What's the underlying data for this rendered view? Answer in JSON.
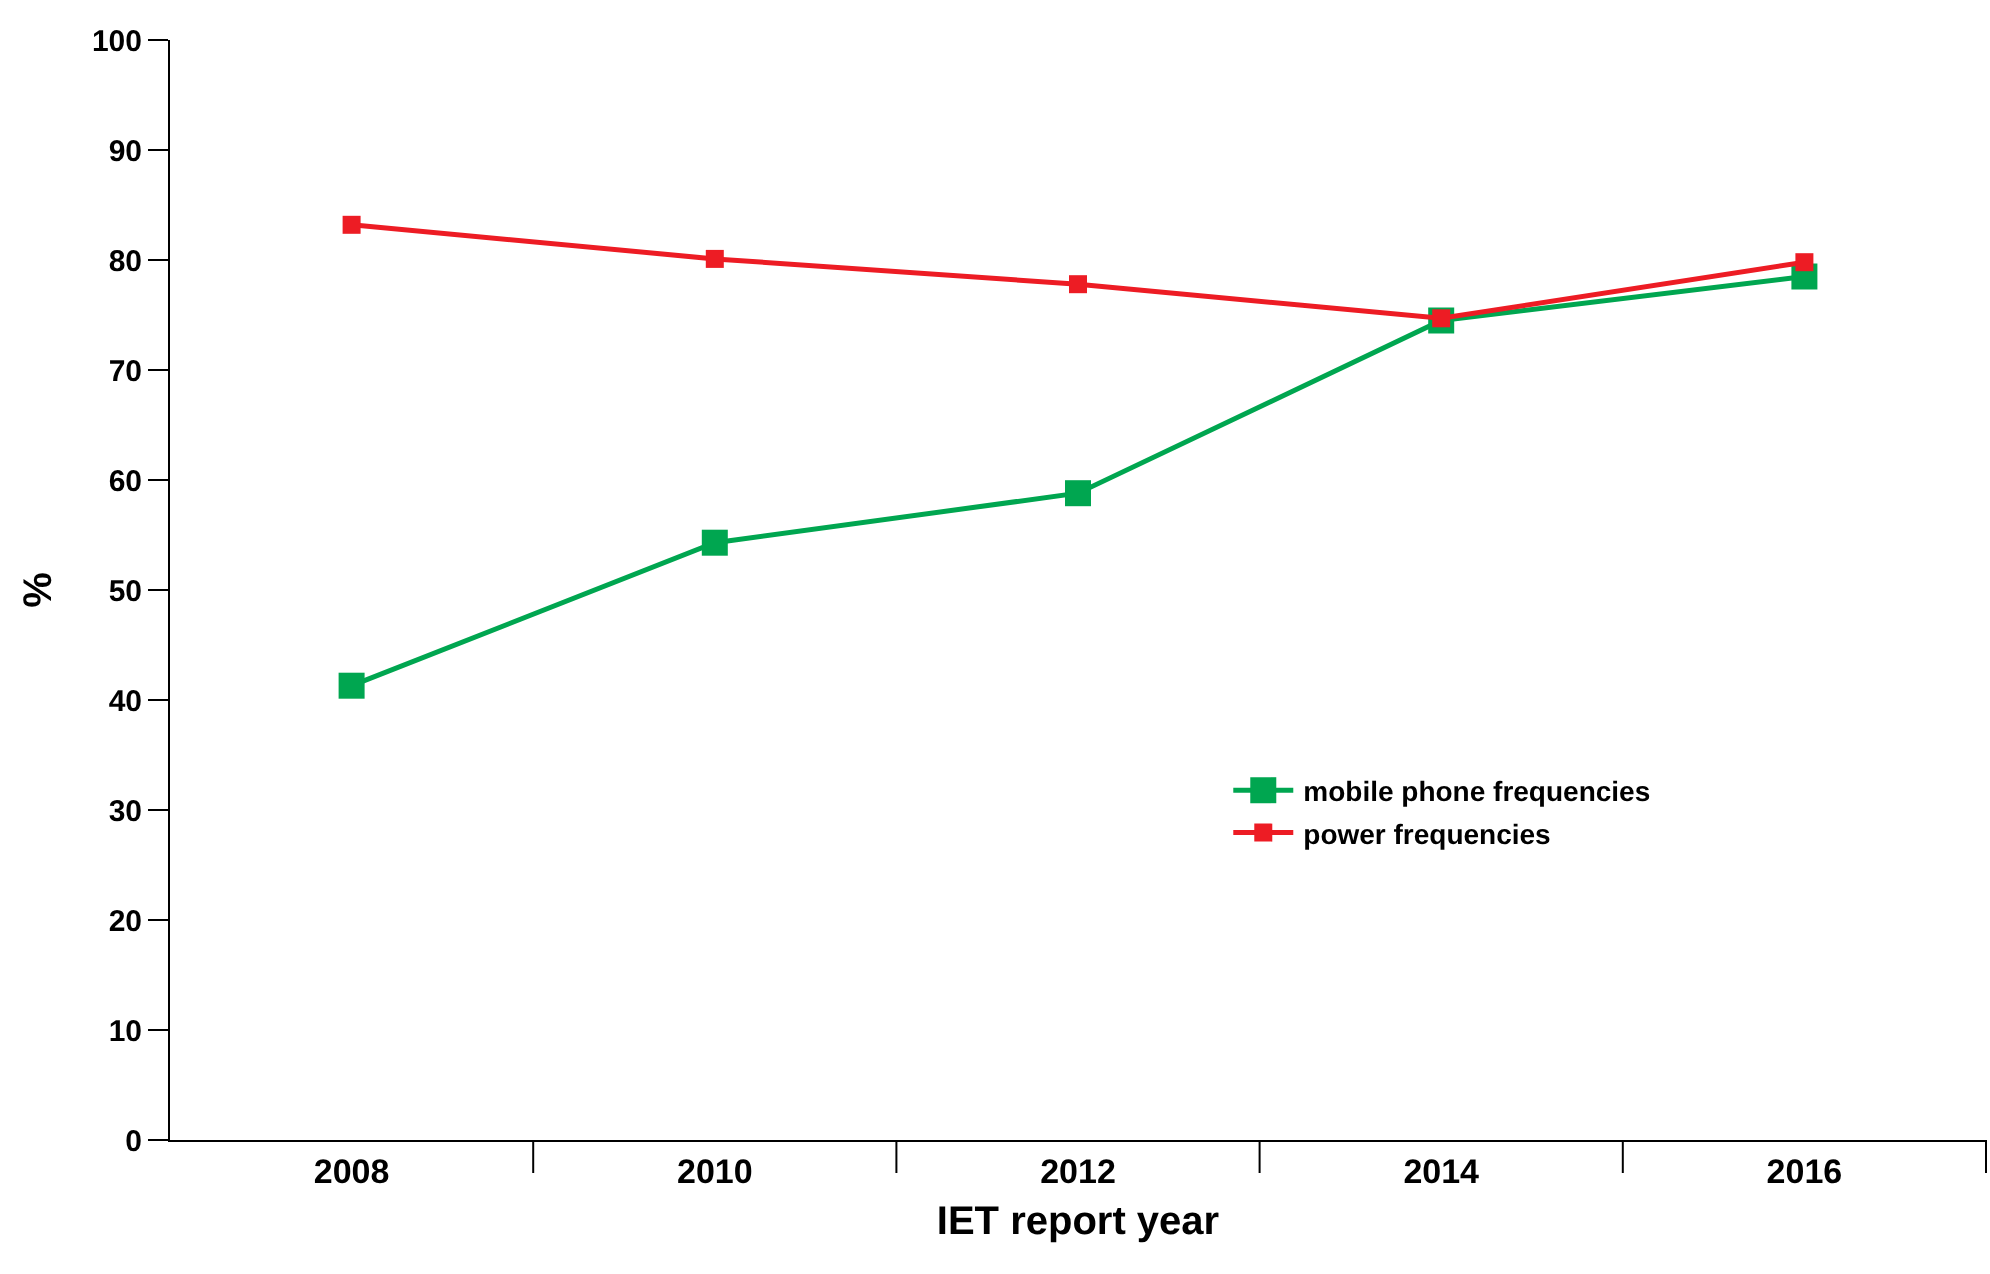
{
  "chart_data": {
    "type": "line",
    "xlabel": "IET report year",
    "ylabel": "%",
    "categories": [
      "2008",
      "2010",
      "2012",
      "2014",
      "2016"
    ],
    "series": [
      {
        "name": "mobile phone frequencies",
        "color": "#00a650",
        "values": [
          41.3,
          54.3,
          58.8,
          74.5,
          78.5
        ]
      },
      {
        "name": "power frequencies",
        "color": "#ed1c24",
        "values": [
          83.2,
          80.1,
          77.8,
          74.7,
          79.8
        ]
      }
    ],
    "ylim": [
      0,
      100
    ],
    "yticks": [
      0,
      10,
      20,
      30,
      40,
      50,
      60,
      70,
      80,
      90,
      100
    ],
    "grid": false,
    "legend": "bottom right",
    "marker": "square",
    "line_style": "solid"
  }
}
